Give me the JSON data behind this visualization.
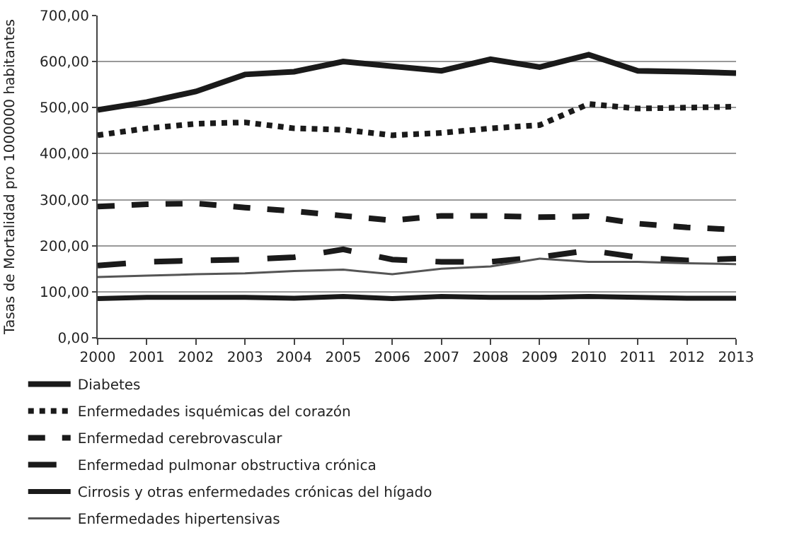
{
  "chart_data": {
    "type": "line",
    "ylabel": "Tasas de Mortalidad pro 1000000 habitantes",
    "x": [
      2000,
      2001,
      2002,
      2003,
      2004,
      2005,
      2006,
      2007,
      2008,
      2009,
      2010,
      2011,
      2012,
      2013
    ],
    "xlim": [
      2000,
      2013
    ],
    "xticks": [
      2000,
      2001,
      2002,
      2003,
      2004,
      2005,
      2006,
      2007,
      2008,
      2009,
      2010,
      2011,
      2012,
      2013
    ],
    "ylim": [
      0,
      700
    ],
    "yticks": [
      {
        "value": 0,
        "label": "0,00"
      },
      {
        "value": 100,
        "label": "100,00"
      },
      {
        "value": 200,
        "label": "200,00"
      },
      {
        "value": 300,
        "label": "300,00"
      },
      {
        "value": 400,
        "label": "400,00"
      },
      {
        "value": 500,
        "label": "500,00"
      },
      {
        "value": 600,
        "label": "600,00"
      },
      {
        "value": 700,
        "label": "700,00"
      }
    ],
    "grid": "y",
    "legend": "bottom",
    "marker": "none",
    "series": [
      {
        "name": "Diabetes",
        "color": "#1a1a1a",
        "line_style": "solid",
        "values": [
          495,
          512,
          535,
          572,
          578,
          600,
          590,
          580,
          605,
          588,
          615,
          580,
          578,
          575
        ]
      },
      {
        "name": "Enfermedades isquémicas del corazón",
        "color": "#1a1a1a",
        "line_style": "dotted",
        "values": [
          440,
          455,
          465,
          468,
          455,
          452,
          440,
          445,
          455,
          462,
          508,
          498,
          500,
          502
        ]
      },
      {
        "name": "Enfermedad cerebrovascular",
        "color": "#1a1a1a",
        "line_style": "dashed",
        "values": [
          285,
          290,
          292,
          283,
          275,
          265,
          255,
          265,
          265,
          262,
          264,
          248,
          240,
          235
        ]
      },
      {
        "name": "Enfermedad pulmonar obstructiva crónica",
        "color": "#1a1a1a",
        "line_style": "dashed",
        "values": [
          157,
          165,
          168,
          170,
          175,
          192,
          170,
          165,
          165,
          175,
          190,
          175,
          168,
          172
        ]
      },
      {
        "name": "Cirrosis y otras enfermedades crónicas del hígado",
        "color": "#1a1a1a",
        "line_style": "solid",
        "values": [
          85,
          88,
          88,
          88,
          86,
          90,
          85,
          90,
          88,
          88,
          90,
          88,
          86,
          86
        ]
      },
      {
        "name": "Enfermedades hipertensivas",
        "color": "#555555",
        "line_style": "solid",
        "values": [
          132,
          135,
          138,
          140,
          145,
          148,
          138,
          150,
          155,
          172,
          165,
          165,
          162,
          160
        ]
      }
    ]
  }
}
